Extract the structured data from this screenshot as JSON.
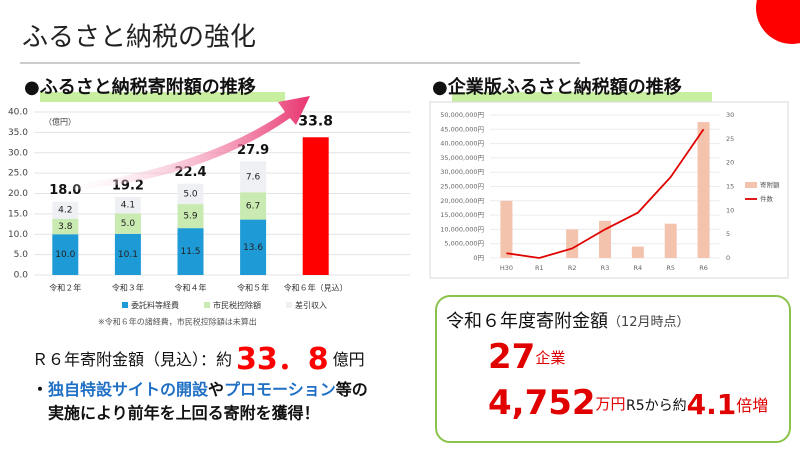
{
  "title": "ふるさと納税の強化",
  "left_heading": "●ふるさと納税寄附額の推移",
  "right_heading": "●企業版ふるさと納税額の推移",
  "chart_data": [
    {
      "type": "stacked_bar",
      "y_unit": "（億円）",
      "categories": [
        "令和２年",
        "令和３年",
        "令和４年",
        "令和５年",
        "令和６年（見込）"
      ],
      "series": [
        {
          "name": "委託料等経費",
          "color": "#1e9ad6",
          "values": [
            10.0,
            10.1,
            11.5,
            13.6,
            null
          ],
          "value_labels": [
            "10.0",
            "10.1",
            "11.5",
            "13.6",
            null
          ]
        },
        {
          "name": "市民税控除額",
          "color": "#c9eab0",
          "values": [
            3.8,
            5.0,
            5.9,
            6.7,
            null
          ],
          "value_labels": [
            "3.8",
            "5.0",
            "5.9",
            "6.7",
            null
          ]
        },
        {
          "name": "差引収入",
          "color": "#eef0f4",
          "values": [
            4.2,
            4.1,
            5.0,
            7.6,
            null
          ],
          "value_labels": [
            "4.2",
            "4.1",
            "5.0",
            "7.6",
            null
          ]
        }
      ],
      "totals": {
        "color": "#ff0000",
        "values": [
          18.0,
          19.2,
          22.4,
          27.9,
          33.8
        ],
        "value_labels": [
          "18.0",
          "19.2",
          "22.4",
          "27.9",
          "33.8"
        ]
      },
      "ylim": [
        0,
        40
      ],
      "yticks": [
        {
          "value": 0,
          "label": "0.0"
        },
        {
          "value": 5,
          "label": "5.0"
        },
        {
          "value": 10,
          "label": "10.0"
        },
        {
          "value": 15,
          "label": "15.0"
        },
        {
          "value": 20,
          "label": "20.0"
        },
        {
          "value": 25,
          "label": "25.0"
        },
        {
          "value": 30,
          "label": "30.0"
        },
        {
          "value": 35,
          "label": "35.0"
        },
        {
          "value": 40,
          "label": "40.0"
        }
      ],
      "grid": true,
      "note": "※令和６年の諸経費，市民税控除額は未算出"
    },
    {
      "type": "bar_line",
      "categories": [
        "H30",
        "R1",
        "R2",
        "R3",
        "R4",
        "R5",
        "R6"
      ],
      "series": [
        {
          "name": "寄附額",
          "color": "#f4c3ae",
          "values": [
            20000000,
            0,
            10000000,
            13000000,
            4000000,
            12000000,
            47520000
          ]
        },
        {
          "name": "件数",
          "color": "#e00000",
          "axis": "y2",
          "values": [
            1,
            0,
            2,
            6,
            9.5,
            17,
            27
          ]
        }
      ],
      "ylim": [
        0,
        50000000
      ],
      "yticks": [
        {
          "value": 0,
          "label": "0円"
        },
        {
          "value": 5000000,
          "label": "5,000,000円"
        },
        {
          "value": 10000000,
          "label": "10,000,000円"
        },
        {
          "value": 15000000,
          "label": "15,000,000円"
        },
        {
          "value": 20000000,
          "label": "20,000,000円"
        },
        {
          "value": 25000000,
          "label": "25,000,000円"
        },
        {
          "value": 30000000,
          "label": "30,000,000円"
        },
        {
          "value": 35000000,
          "label": "35,000,000円"
        },
        {
          "value": 40000000,
          "label": "40,000,000円"
        },
        {
          "value": 45000000,
          "label": "45,000,000円"
        },
        {
          "value": 50000000,
          "label": "50,000,000円"
        }
      ],
      "y2lim": [
        0,
        30
      ],
      "y2ticks": [
        0,
        5,
        10,
        15,
        20,
        25,
        30
      ],
      "grid": true,
      "legend": "right"
    }
  ],
  "summary": {
    "line1": [
      "Ｒ６年寄附金額（見込）：約",
      "33．8",
      "億円"
    ],
    "line2": [
      "・",
      "独自特設サイトの開設",
      "や",
      "プロモーション",
      "等の"
    ],
    "line3": "実施により前年を上回る寄附を獲得！"
  },
  "box": {
    "title": "令和６年度寄附金額",
    "note": "（12月時点）",
    "count": "27",
    "count_unit": "企業",
    "amount": "4,752",
    "amount_unit": "万円",
    "compare": "R5から約",
    "ratio": "4.1",
    "ratio_unit": "倍増"
  }
}
